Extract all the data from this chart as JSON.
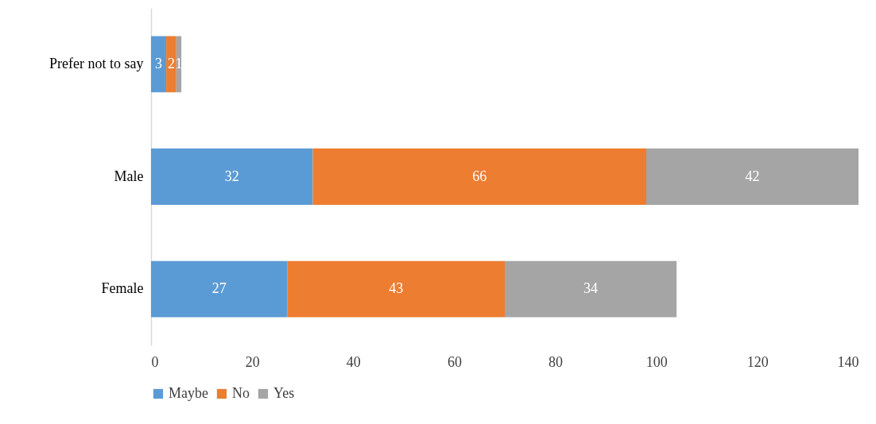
{
  "chart_data": {
    "type": "bar",
    "orientation": "horizontal",
    "stacked": true,
    "categories": [
      "Prefer not to say",
      "Male",
      "Female"
    ],
    "series": [
      {
        "name": "Maybe",
        "color": "#5b9bd5",
        "values": [
          3,
          32,
          27
        ]
      },
      {
        "name": "No",
        "color": "#ed7d31",
        "values": [
          2,
          66,
          43
        ]
      },
      {
        "name": "Yes",
        "color": "#a5a5a5",
        "values": [
          1,
          42,
          34
        ]
      }
    ],
    "xlim": [
      0,
      140
    ],
    "xticks": [
      0,
      20,
      40,
      60,
      80,
      100,
      120,
      140
    ],
    "grid": false,
    "legend": "bottom",
    "data_labels": true
  }
}
